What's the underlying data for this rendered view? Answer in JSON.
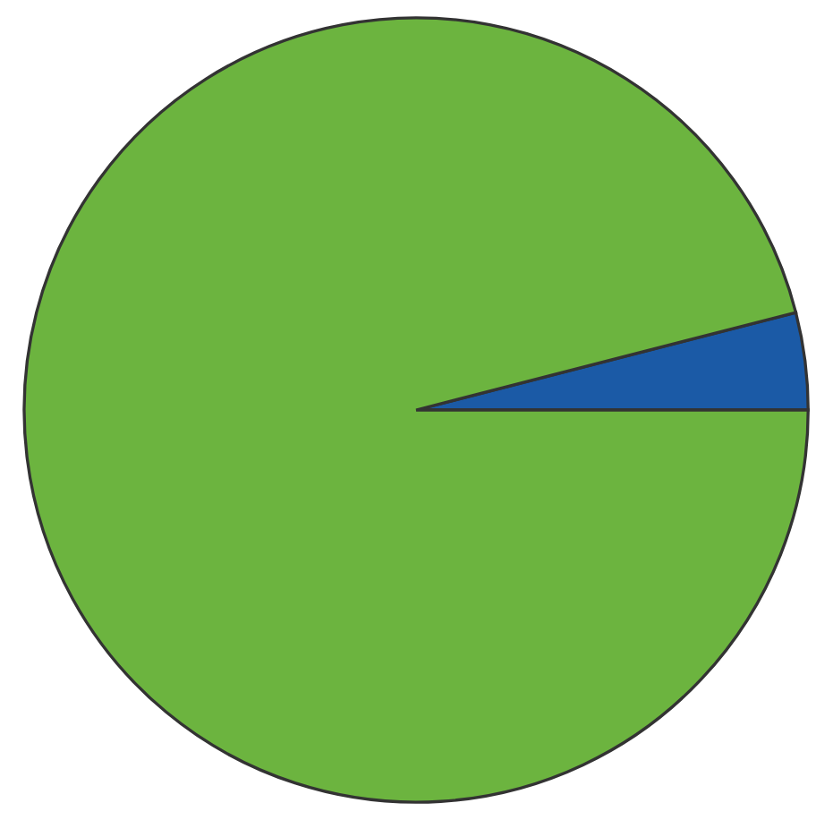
{
  "chart_data": {
    "type": "pie",
    "categories": [
      null,
      null
    ],
    "values": [
      4,
      96
    ],
    "colors": [
      "#1b5aa6",
      "#6cb43f"
    ]
  }
}
